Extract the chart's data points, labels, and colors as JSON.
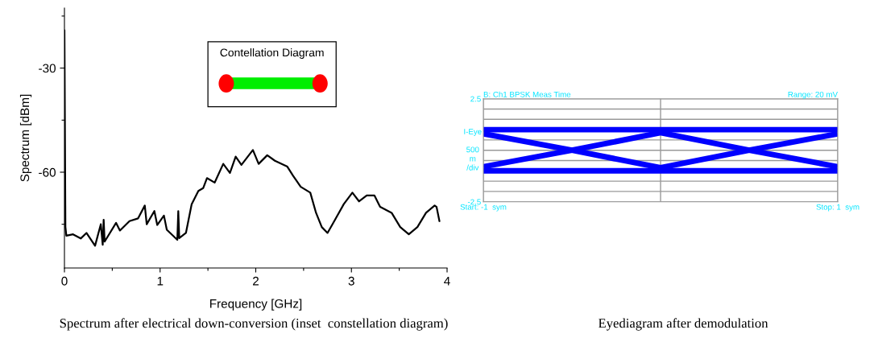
{
  "chart_data": [
    {
      "type": "line",
      "xlabel": "Frequency [GHz]",
      "ylabel": "Spectrum [dBm]",
      "xlim": [
        0,
        4
      ],
      "ylim": [
        -87.6,
        -12.7
      ],
      "xticks": [
        0,
        {
          "value": 0.5,
          "label": null
        },
        1,
        {
          "value": 1.5,
          "label": null
        },
        2,
        {
          "value": 2.5,
          "label": null
        },
        3,
        {
          "value": 3.5,
          "label": null
        },
        4
      ],
      "yticks": [
        {
          "value": -75,
          "label": null
        },
        -60,
        {
          "value": -45,
          "label": null
        },
        -30,
        {
          "value": -15,
          "label": null
        }
      ],
      "grid": false,
      "legend": false,
      "marker": "none",
      "line_style": "solid",
      "series": [
        {
          "color": "#000000",
          "x": [
            0.0,
            0.01,
            0.02,
            0.09,
            0.17,
            0.23,
            0.32,
            0.38,
            0.4,
            0.41,
            0.42,
            0.54,
            0.58,
            0.68,
            0.77,
            0.84,
            0.86,
            0.94,
            0.97,
            1.04,
            1.07,
            1.18,
            1.19,
            1.2,
            1.27,
            1.33,
            1.4,
            1.45,
            1.49,
            1.57,
            1.66,
            1.73,
            1.79,
            1.85,
            1.97,
            2.03,
            2.12,
            2.2,
            2.33,
            2.39,
            2.47,
            2.57,
            2.63,
            2.69,
            2.75,
            2.81,
            2.92,
            3.01,
            3.08,
            3.16,
            3.24,
            3.3,
            3.42,
            3.51,
            3.6,
            3.69,
            3.78,
            3.87,
            3.89,
            3.92
          ],
          "values": [
            -19.1,
            -75.8,
            -78.3,
            -77.9,
            -79.1,
            -77.5,
            -81.2,
            -75,
            -80.9,
            -73.7,
            -80,
            -74.6,
            -76.8,
            -74.1,
            -73.3,
            -69.6,
            -75,
            -71.2,
            -75.2,
            -72.5,
            -76.6,
            -79.5,
            -71.2,
            -79,
            -77.5,
            -69.2,
            -65.4,
            -64.6,
            -61.7,
            -63,
            -57.6,
            -60.2,
            -55.5,
            -57.9,
            -53.6,
            -57.6,
            -55.1,
            -56.7,
            -58.4,
            -61,
            -64.2,
            -65.9,
            -71.7,
            -75.8,
            -77.5,
            -74.6,
            -69.2,
            -65.9,
            -68.4,
            -66.7,
            -66.7,
            -70,
            -71.7,
            -75.8,
            -77.9,
            -75.8,
            -71.7,
            -69.6,
            -70,
            -74.1
          ]
        }
      ],
      "annotations": [
        "Contellation Diagram",
        "Spectrum after electrical down-conversion (inset  constellation diagram)"
      ]
    },
    {
      "type": "line",
      "title": "B: Ch1 BPSK Meas Time",
      "subtitle": "Range: 20 mV",
      "ylabel": "I-Eye\n\n500\nm\n/div",
      "xlim": [
        -1,
        1
      ],
      "ylim": [
        -2.5,
        2.5
      ],
      "xticks": [
        {
          "value": -1,
          "label": "Start: -1  sym"
        },
        {
          "value": 0,
          "label": null
        },
        {
          "value": 1,
          "label": "Stop: 1  sym"
        }
      ],
      "yticks": [
        {
          "value": -2.5,
          "label": "-2.5"
        },
        {
          "value": -2,
          "label": null
        },
        {
          "value": -1.5,
          "label": null
        },
        {
          "value": -1,
          "label": null
        },
        {
          "value": -0.5,
          "label": null
        },
        {
          "value": 0,
          "label": null
        },
        {
          "value": 0.5,
          "label": null
        },
        {
          "value": 1,
          "label": null
        },
        {
          "value": 1.5,
          "label": null
        },
        {
          "value": 2,
          "label": null
        },
        {
          "value": 2.5,
          "label": "2.5"
        }
      ],
      "grid": true,
      "legend": false,
      "marker": "none",
      "line_style": "solid",
      "series": [
        {
          "color": "#0000ff",
          "x": [
            -1,
            1
          ],
          "values": [
            1,
            1
          ]
        },
        {
          "color": "#0000ff",
          "x": [
            -1,
            1
          ],
          "values": [
            -1,
            -1
          ]
        },
        {
          "color": "#0000ff",
          "x": [
            -1,
            -0.5,
            0,
            0.5,
            1
          ],
          "values": [
            0.8,
            0,
            -0.85,
            0,
            0.8
          ]
        },
        {
          "color": "#0000ff",
          "x": [
            -1,
            -0.5,
            0,
            0.5,
            1
          ],
          "values": [
            -0.8,
            0,
            0.85,
            0,
            -0.8
          ]
        }
      ],
      "annotations": [
        "Eyediagram after demodulation"
      ]
    }
  ]
}
